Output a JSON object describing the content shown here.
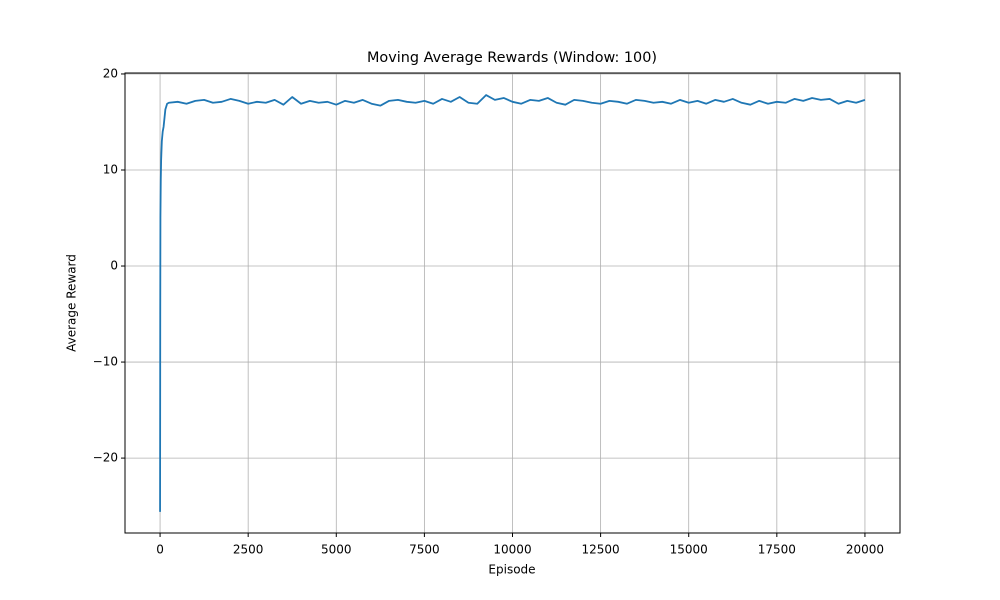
{
  "chart_data": {
    "type": "line",
    "title": "Moving Average Rewards (Window: 100)",
    "x_label": "Episode",
    "y_label": "Average Reward",
    "x": [
      0,
      5,
      10,
      20,
      30,
      50,
      75,
      100,
      150,
      200,
      250,
      500,
      750,
      1000,
      1250,
      1500,
      1750,
      2000,
      2250,
      2500,
      2750,
      3000,
      3250,
      3500,
      3750,
      4000,
      4250,
      4500,
      4750,
      5000,
      5250,
      5500,
      5750,
      6000,
      6250,
      6500,
      6750,
      7000,
      7250,
      7500,
      7750,
      8000,
      8250,
      8500,
      8750,
      9000,
      9250,
      9500,
      9750,
      10000,
      10250,
      10500,
      10750,
      11000,
      11250,
      11500,
      11750,
      12000,
      12250,
      12500,
      12750,
      13000,
      13250,
      13500,
      13750,
      14000,
      14250,
      14500,
      14750,
      15000,
      15250,
      15500,
      15750,
      16000,
      16250,
      16500,
      16750,
      17000,
      17250,
      17500,
      17750,
      18000,
      18250,
      18500,
      18750,
      19000,
      19250,
      19500,
      19750,
      20000
    ],
    "series": [
      {
        "name": "Moving Average",
        "color": "#1f77b4",
        "values": [
          -25.6,
          -5,
          5,
          9,
          11,
          13,
          14,
          14.5,
          16.3,
          16.9,
          17.0,
          17.1,
          16.9,
          17.2,
          17.3,
          17.0,
          17.1,
          17.4,
          17.2,
          16.9,
          17.1,
          17.0,
          17.3,
          16.8,
          17.6,
          16.9,
          17.2,
          17.0,
          17.1,
          16.8,
          17.2,
          17.0,
          17.3,
          16.9,
          16.7,
          17.2,
          17.3,
          17.1,
          17.0,
          17.2,
          16.9,
          17.4,
          17.1,
          17.6,
          17.0,
          16.9,
          17.8,
          17.3,
          17.5,
          17.1,
          16.9,
          17.3,
          17.2,
          17.5,
          17.0,
          16.8,
          17.3,
          17.2,
          17.0,
          16.9,
          17.2,
          17.1,
          16.9,
          17.3,
          17.2,
          17.0,
          17.1,
          16.9,
          17.3,
          17.0,
          17.2,
          16.9,
          17.3,
          17.1,
          17.4,
          17.0,
          16.8,
          17.2,
          16.9,
          17.1,
          17.0,
          17.4,
          17.2,
          17.5,
          17.3,
          17.4,
          16.9,
          17.2,
          17.0,
          17.3
        ]
      }
    ],
    "xlim": [
      -995,
      20995
    ],
    "ylim": [
      -27.8,
      20.1
    ],
    "xticks": [
      0,
      2500,
      5000,
      7500,
      10000,
      12500,
      15000,
      17500,
      20000
    ],
    "yticks": [
      {
        "value": -20,
        "label": "−20"
      },
      {
        "value": -10,
        "label": "−10"
      },
      0,
      10,
      20
    ],
    "grid": true
  }
}
